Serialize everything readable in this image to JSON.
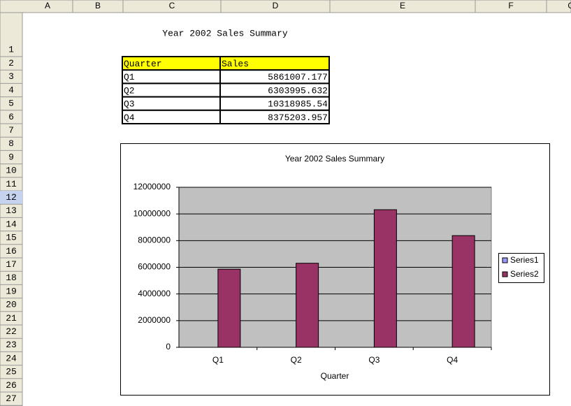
{
  "columns": [
    "A",
    "B",
    "C",
    "D",
    "E",
    "F",
    "G"
  ],
  "rows": [
    1,
    2,
    3,
    4,
    5,
    6,
    7,
    8,
    9,
    10,
    11,
    12,
    13,
    14,
    15,
    16,
    17,
    18,
    19,
    20,
    21,
    22,
    23,
    24,
    25,
    26,
    27
  ],
  "sheet_title": "Year 2002 Sales Summary",
  "table": {
    "header": [
      "Quarter",
      "Sales"
    ],
    "rows": [
      [
        "Q1",
        "5861007.177"
      ],
      [
        "Q2",
        "6303995.632"
      ],
      [
        "Q3",
        "10318985.54"
      ],
      [
        "Q4",
        "8375203.957"
      ]
    ]
  },
  "chart_data": {
    "type": "bar",
    "title": "Year 2002 Sales Summary",
    "x_label": "Quarter",
    "categories": [
      "Q1",
      "Q2",
      "Q3",
      "Q4"
    ],
    "series": [
      {
        "name": "Series1",
        "color": "#9999ff",
        "values": [
          null,
          null,
          null,
          null
        ]
      },
      {
        "name": "Series2",
        "color": "#993366",
        "values": [
          5861007.177,
          6303995.632,
          10318985.54,
          8375203.957
        ]
      }
    ],
    "ylim": [
      0,
      12000000
    ],
    "yticks": [
      0,
      2000000,
      4000000,
      6000000,
      8000000,
      10000000,
      12000000
    ],
    "grid": true,
    "legend": "right"
  }
}
